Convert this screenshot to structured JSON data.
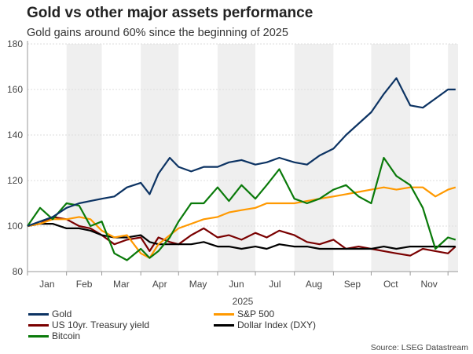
{
  "title": "Gold vs other major assets performance",
  "subtitle": "Gold gains around 60% since the beginning of 2025",
  "source": "Source: LSEG Datastream",
  "chart_data": {
    "type": "line",
    "xlabel": "2025",
    "ylim": [
      80,
      180
    ],
    "yticks": [
      80,
      100,
      120,
      140,
      160,
      180
    ],
    "month_labels": [
      "Jan",
      "Feb",
      "Mar",
      "Apr",
      "May",
      "Jun",
      "Jul",
      "Aug",
      "Sep",
      "Oct",
      "Nov"
    ],
    "shaded_months": "alternating (Feb, Apr, Jun, Aug, Oct, Dec)",
    "grid": "horizontal dotted",
    "legend_placement": "bottom",
    "x_day_of_year": [
      0,
      10,
      20,
      31,
      41,
      50,
      59,
      69,
      79,
      90,
      97,
      104,
      113,
      120,
      130,
      140,
      151,
      160,
      170,
      181,
      190,
      200,
      212,
      222,
      232,
      243,
      253,
      263,
      273,
      283,
      293,
      304,
      314,
      324,
      334,
      340
    ],
    "series": [
      {
        "name": "Gold",
        "color": "#0c3363",
        "values": [
          100,
          102,
          104,
          108,
          110,
          111,
          112,
          113,
          117,
          119,
          114,
          123,
          130,
          126,
          124,
          126,
          126,
          128,
          129,
          127,
          128,
          130,
          128,
          127,
          131,
          134,
          140,
          145,
          150,
          158,
          165,
          153,
          152,
          156,
          160,
          160
        ]
      },
      {
        "name": "S&P 500",
        "color": "#ff9900",
        "values": [
          100,
          101,
          103,
          103,
          104,
          103,
          98,
          95,
          96,
          88,
          86,
          92,
          96,
          99,
          101,
          103,
          104,
          106,
          107,
          108,
          110,
          110,
          110,
          111,
          112,
          113,
          114,
          115,
          116,
          117,
          116,
          117,
          117,
          113,
          116,
          117
        ]
      },
      {
        "name": "US 10yr. Treasury yield",
        "color": "#7a0000",
        "values": [
          100,
          101,
          104,
          103,
          100,
          99,
          96,
          92,
          94,
          95,
          89,
          95,
          93,
          92,
          96,
          99,
          95,
          96,
          94,
          97,
          95,
          98,
          96,
          93,
          92,
          94,
          90,
          91,
          90,
          89,
          88,
          87,
          90,
          89,
          88,
          91
        ]
      },
      {
        "name": "Dollar Index (DXY)",
        "color": "#000000",
        "values": [
          100,
          101,
          101,
          99,
          99,
          98,
          96,
          95,
          95,
          96,
          93,
          92,
          92,
          92,
          92,
          93,
          91,
          91,
          90,
          91,
          90,
          92,
          91,
          91,
          90,
          90,
          90,
          90,
          90,
          91,
          90,
          91,
          91,
          91,
          91,
          91
        ]
      },
      {
        "name": "Bitcoin",
        "color": "#0a7a0a",
        "values": [
          100,
          108,
          103,
          110,
          109,
          100,
          102,
          88,
          85,
          90,
          86,
          89,
          95,
          102,
          110,
          110,
          117,
          111,
          118,
          112,
          118,
          125,
          112,
          110,
          112,
          116,
          118,
          113,
          110,
          130,
          122,
          118,
          108,
          90,
          95,
          94
        ]
      }
    ]
  }
}
